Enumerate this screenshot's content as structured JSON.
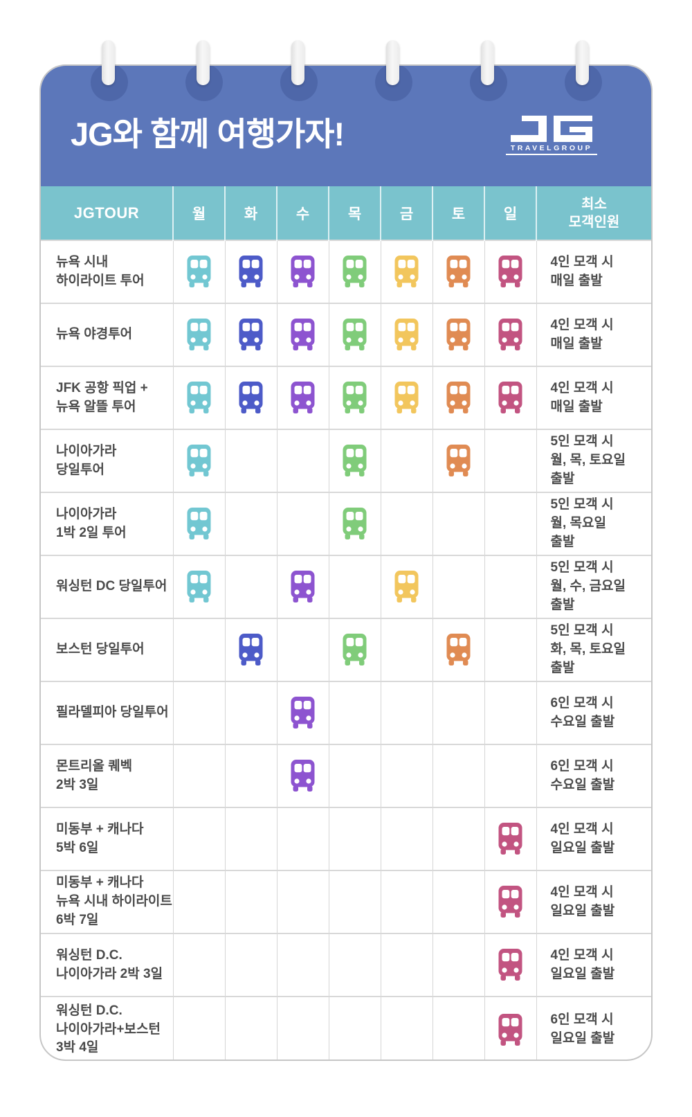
{
  "header": {
    "title": "JG와 함께 여행가자!",
    "logo": {
      "name": "JG",
      "subtext": "TRAVELGROUP"
    }
  },
  "colors": {
    "header_blue": "#5c77ba",
    "ring_hole_blue": "#4e67a9",
    "table_head_teal": "#7ac3cd",
    "mon": "#72c7d2",
    "tue": "#4d5bc8",
    "wed": "#8d54d0",
    "thu": "#80cc7a",
    "fri": "#f2c65d",
    "sat": "#e08b53",
    "sun": "#c25481"
  },
  "table": {
    "columns": [
      "JGTOUR",
      "월",
      "화",
      "수",
      "목",
      "금",
      "토",
      "일",
      "최소\n모객인원"
    ],
    "day_keys": [
      "mon",
      "tue",
      "wed",
      "thu",
      "fri",
      "sat",
      "sun"
    ],
    "rows": [
      {
        "tour": "뉴욕 시내\n하이라이트 투어",
        "days": [
          "mon",
          "tue",
          "wed",
          "thu",
          "fri",
          "sat",
          "sun"
        ],
        "min": "4인 모객 시\n매일 출발"
      },
      {
        "tour": "뉴욕 야경투어",
        "days": [
          "mon",
          "tue",
          "wed",
          "thu",
          "fri",
          "sat",
          "sun"
        ],
        "min": "4인 모객 시\n매일 출발"
      },
      {
        "tour": "JFK 공항 픽업 +\n뉴욕 알뜰 투어",
        "days": [
          "mon",
          "tue",
          "wed",
          "thu",
          "fri",
          "sat",
          "sun"
        ],
        "min": "4인 모객 시\n매일 출발"
      },
      {
        "tour": "나이아가라\n당일투어",
        "days": [
          "mon",
          "thu",
          "sat"
        ],
        "min": "5인 모객 시\n월, 목, 토요일\n출발"
      },
      {
        "tour": "나이아가라\n1박 2일 투어",
        "days": [
          "mon",
          "thu"
        ],
        "min": "5인 모객 시\n월, 목요일\n출발"
      },
      {
        "tour": "워싱턴 DC 당일투어",
        "days": [
          "mon",
          "wed",
          "fri"
        ],
        "min": "5인 모객 시\n월, 수, 금요일\n출발"
      },
      {
        "tour": "보스턴 당일투어",
        "days": [
          "tue",
          "thu",
          "sat"
        ],
        "min": "5인 모객 시\n화, 목, 토요일\n출발"
      },
      {
        "tour": "필라델피아 당일투어",
        "days": [
          "wed"
        ],
        "min": "6인 모객 시\n수요일 출발"
      },
      {
        "tour": "몬트리올 퀘벡\n2박 3일",
        "days": [
          "wed"
        ],
        "min": "6인 모객 시\n수요일 출발"
      },
      {
        "tour": "미동부 + 캐나다\n5박 6일",
        "days": [
          "sun"
        ],
        "min": "4인 모객 시\n일요일 출발"
      },
      {
        "tour": "미동부 + 캐나다\n뉴욕 시내 하이라이트\n6박 7일",
        "days": [
          "sun"
        ],
        "min": "4인 모객 시\n일요일 출발"
      },
      {
        "tour": "워싱턴 D.C.\n나이아가라 2박 3일",
        "days": [
          "sun"
        ],
        "min": "4인 모객 시\n일요일 출발"
      },
      {
        "tour": "워싱턴 D.C.\n나이아가라+보스턴\n3박 4일",
        "days": [
          "sun"
        ],
        "min": "6인 모객 시\n일요일 출발"
      }
    ]
  }
}
